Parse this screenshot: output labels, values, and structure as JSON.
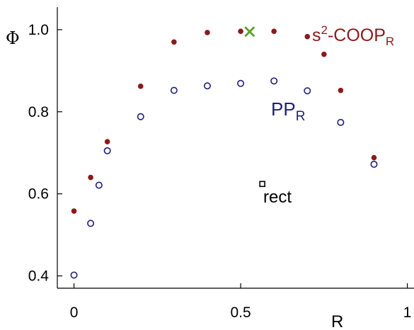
{
  "chart_data": {
    "type": "scatter",
    "xlabel": "R",
    "ylabel": "Φ",
    "xlim": [
      -0.05,
      1.02
    ],
    "ylim": [
      0.37,
      1.055
    ],
    "xticks": [
      {
        "value": 0,
        "label": "0"
      },
      {
        "value": 0.5,
        "label": "0.5"
      },
      {
        "value": 1,
        "label": "1"
      }
    ],
    "yticks": [
      {
        "value": 0.4,
        "label": "0.4"
      },
      {
        "value": 0.6,
        "label": "0.6"
      },
      {
        "value": 0.8,
        "label": "0.8"
      },
      {
        "value": 1.0,
        "label": "1.0"
      }
    ],
    "grid": false,
    "series": [
      {
        "label_main": "s",
        "label_sup": "2",
        "label_mid": "-COOP",
        "label_sub": "R",
        "color": "#8b1a1a",
        "marker": "filled-circle",
        "x": [
          0,
          0.05,
          0.1,
          0.2,
          0.3,
          0.4,
          0.5,
          0.6,
          0.7,
          0.75,
          0.8,
          0.9
        ],
        "y": [
          0.558,
          0.64,
          0.727,
          0.862,
          0.97,
          0.993,
          0.996,
          0.996,
          0.983,
          0.94,
          0.852,
          0.688
        ]
      },
      {
        "label_main": "PP",
        "label_sub": "R",
        "color": "#1f1f7a",
        "marker": "open-circle",
        "x": [
          0,
          0.05,
          0.075,
          0.1,
          0.2,
          0.3,
          0.4,
          0.5,
          0.6,
          0.7,
          0.8,
          0.9
        ],
        "y": [
          0.402,
          0.528,
          0.621,
          0.705,
          0.788,
          0.852,
          0.863,
          0.869,
          0.875,
          0.851,
          0.774,
          0.672
        ]
      }
    ],
    "highlight": {
      "marker": "x-cross",
      "color": "#5aa02c",
      "x": 0.527,
      "y": 0.995
    },
    "annotation": {
      "label": "rect",
      "marker": "open-square",
      "color": "#000000",
      "x": 0.565,
      "y": 0.624
    }
  }
}
